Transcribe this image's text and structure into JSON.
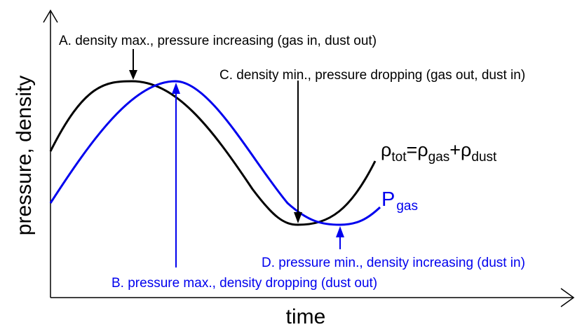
{
  "axes": {
    "xlabel": "time",
    "ylabel": "pressure, density"
  },
  "curves": {
    "density": {
      "symbol": "ρ",
      "sub_tot": "tot",
      "eq": "=",
      "sub_gas": "gas",
      "plus": "+",
      "sub_dust": "dust",
      "color": "#000000"
    },
    "pressure": {
      "symbol": "P",
      "sub": "gas",
      "color": "#0000ee"
    }
  },
  "annotations": {
    "a": "A. density max., pressure increasing (gas in, dust out)",
    "b": "B. pressure max., density dropping (dust out)",
    "c": "C. density min., pressure dropping (gas out, dust in)",
    "d": "D. pressure min., density increasing (dust in)"
  }
}
